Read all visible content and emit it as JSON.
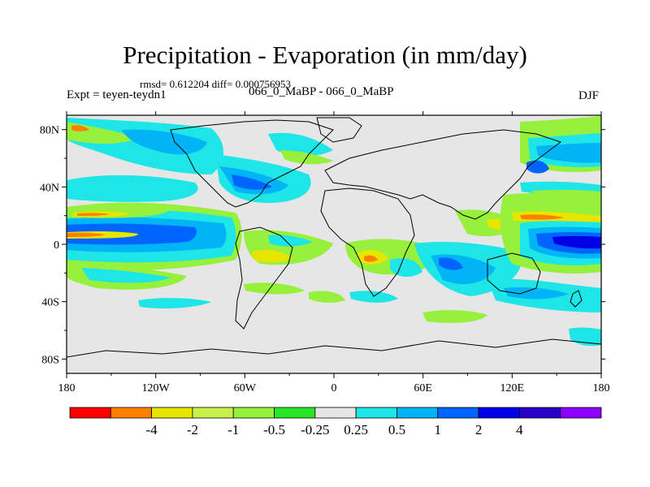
{
  "title": "Precipitation - Evaporation (in mm/day)",
  "stats": "rmsd= 0.612204  diff= 0.000756953",
  "experiment": "Expt = teyen-teydn1",
  "runs": "066_0_MaBP - 066_0_MaBP",
  "season": "DJF",
  "map": {
    "lon_range": [
      -180,
      180
    ],
    "lat_range": [
      -90,
      90
    ],
    "x_ticks": [
      {
        "lon": -180,
        "label": "180"
      },
      {
        "lon": -120,
        "label": "120W"
      },
      {
        "lon": -60,
        "label": "60W"
      },
      {
        "lon": 0,
        "label": "0"
      },
      {
        "lon": 60,
        "label": "60E"
      },
      {
        "lon": 120,
        "label": "120E"
      },
      {
        "lon": 180,
        "label": "180"
      }
    ],
    "y_ticks": [
      {
        "lat": 80,
        "label": "80N"
      },
      {
        "lat": 40,
        "label": "40N"
      },
      {
        "lat": 0,
        "label": "0"
      },
      {
        "lat": -40,
        "label": "40S"
      },
      {
        "lat": -80,
        "label": "80S"
      }
    ],
    "background_color": "#e6e6e6",
    "features": [
      {
        "band": "-4",
        "kind": "tropical-dry-band",
        "lon": [
          -175,
          -130
        ],
        "lat": [
          -3,
          2
        ]
      },
      {
        "band": "2",
        "kind": "equatorial-wet-band",
        "lon": [
          -180,
          -90
        ],
        "lat": [
          -8,
          8
        ]
      },
      {
        "band": "1",
        "kind": "equatorial-wet-band",
        "lon": [
          -180,
          -80
        ],
        "lat": [
          -12,
          12
        ]
      },
      {
        "band": "2",
        "kind": "pacific-wet-band",
        "lon": [
          140,
          180
        ],
        "lat": [
          -5,
          10
        ]
      },
      {
        "band": "-1",
        "kind": "subtropical-dry",
        "lon": [
          -180,
          -120
        ],
        "lat": [
          10,
          22
        ]
      },
      {
        "band": "-2",
        "kind": "subtropical-dry",
        "lon": [
          -170,
          -140
        ],
        "lat": [
          14,
          18
        ]
      },
      {
        "band": "1",
        "kind": "storm-track",
        "lon": [
          -140,
          -80
        ],
        "lat": [
          30,
          45
        ]
      },
      {
        "band": "0.5",
        "kind": "storm-track",
        "lon": [
          -75,
          -10
        ],
        "lat": [
          30,
          50
        ]
      },
      {
        "band": "1",
        "kind": "storm-track",
        "lon": [
          130,
          175
        ],
        "lat": [
          30,
          48
        ]
      },
      {
        "band": "-0.5",
        "kind": "southern-dry",
        "lon": [
          -150,
          -80
        ],
        "lat": [
          -30,
          -15
        ]
      },
      {
        "band": "1",
        "kind": "southern-wet",
        "lon": [
          30,
          60
        ],
        "lat": [
          -30,
          -10
        ]
      },
      {
        "band": "0.5",
        "kind": "southern-ocean",
        "lon": [
          -180,
          180
        ],
        "lat": [
          -55,
          -45
        ]
      }
    ]
  },
  "colorbar": {
    "colors": [
      "#ff0000",
      "#ff8000",
      "#e6e600",
      "#c8f04b",
      "#96f03c",
      "#28e628",
      "#e6e6e6",
      "#1ee6e6",
      "#00b4f5",
      "#0064ff",
      "#0000e6",
      "#2800c8",
      "#8c00ff"
    ],
    "labels": [
      "-4",
      "-2",
      "-1",
      "-0.5",
      "-0.25",
      "0.25",
      "0.5",
      "1",
      "2",
      "4"
    ]
  }
}
